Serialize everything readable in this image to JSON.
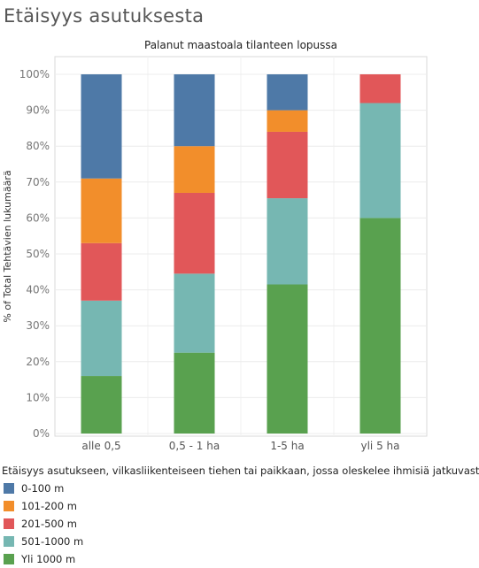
{
  "page_title": "Etäisyys asutuksesta",
  "chart_data": {
    "type": "bar",
    "stacked": true,
    "title": "Palanut maastoala tilanteen lopussa",
    "xlabel": "",
    "ylabel": "% of Total Tehtävien lukumäärä",
    "ylim": [
      0,
      100
    ],
    "yticks": [
      "0%",
      "10%",
      "20%",
      "30%",
      "40%",
      "50%",
      "60%",
      "70%",
      "80%",
      "90%",
      "100%"
    ],
    "categories": [
      "alle 0,5",
      "0,5 - 1 ha",
      "1-5 ha",
      "yli 5 ha"
    ],
    "grid": true,
    "legend_placement": "bottom-left",
    "legend_title": "Etäisyys asutukseen, vilkasliikenteiseen tiehen tai paikkaan, jossa oleskelee ihmisiä jatkuvasti.",
    "series": [
      {
        "name": "Yli 1000 m",
        "color": "#59a14f",
        "values": [
          16,
          22.5,
          41.5,
          60
        ]
      },
      {
        "name": "501-1000 m",
        "color": "#76b7b2",
        "values": [
          21,
          22,
          24,
          32
        ]
      },
      {
        "name": "201-500 m",
        "color": "#e15759",
        "values": [
          16,
          22.5,
          18.5,
          8
        ]
      },
      {
        "name": "101-200 m",
        "color": "#f28e2b",
        "values": [
          18,
          13,
          6,
          0
        ]
      },
      {
        "name": "0-100 m",
        "color": "#4e79a7",
        "values": [
          29,
          20,
          10,
          0
        ]
      }
    ],
    "legend_order": [
      "0-100 m",
      "101-200 m",
      "201-500 m",
      "501-1000 m",
      "Yli 1000 m"
    ]
  }
}
